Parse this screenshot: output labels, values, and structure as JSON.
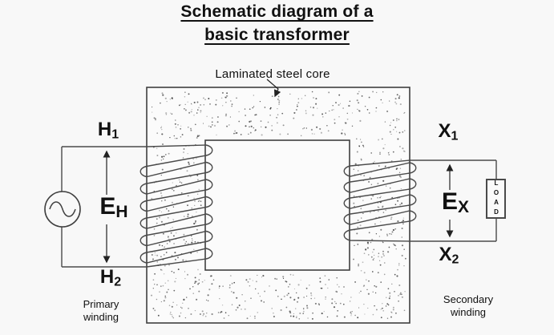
{
  "title": {
    "line1": "Schematic diagram of a",
    "line2": "basic transformer"
  },
  "core_label": "Laminated steel core",
  "terminals": {
    "h1": {
      "letter": "H",
      "sub": "1"
    },
    "h2": {
      "letter": "H",
      "sub": "2"
    },
    "x1": {
      "letter": "X",
      "sub": "1"
    },
    "x2": {
      "letter": "X",
      "sub": "2"
    }
  },
  "voltages": {
    "primary": {
      "letter": "E",
      "sub": "H"
    },
    "secondary": {
      "letter": "E",
      "sub": "X"
    }
  },
  "load_label": "LOAD",
  "captions": {
    "primary": "Primary winding",
    "secondary": "Secondary winding"
  },
  "colors": {
    "background": "#f8f8f8",
    "line": "#4a4a4a",
    "text": "#111111"
  }
}
